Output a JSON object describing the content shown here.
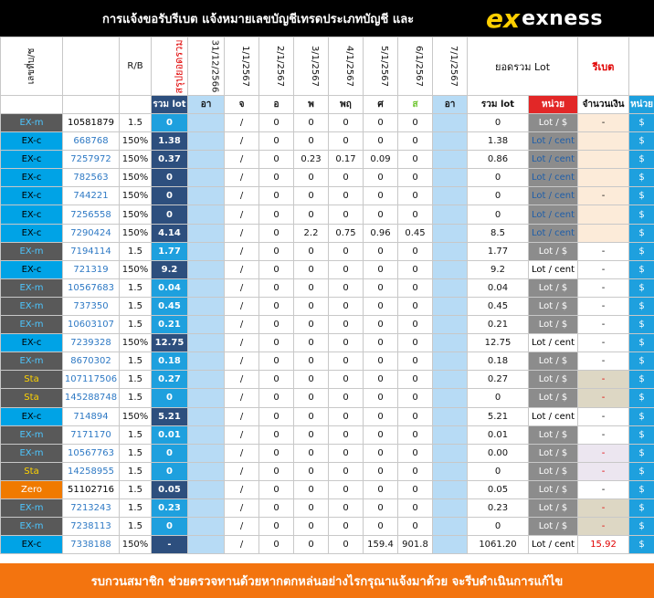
{
  "header": {
    "title": "การแจ้งขอรับรีเบต  แจ้งหมายเลขบัญชีเทรดประเภทบัญชี และ",
    "logo_mark": "ex",
    "logo_word": "exness"
  },
  "columns": {
    "row1": {
      "acc_type": "เลขที่บ/ช",
      "rb": "R/B",
      "lot_rotated": "สรุปยอดรวม",
      "dates": [
        "31/12/2566",
        "1/1/2567",
        "2/1/2567",
        "3/1/2567",
        "4/1/2567",
        "5/1/2567",
        "6/1/2567",
        "7/1/2567"
      ],
      "sum_lot": "ยอดรวม Lot",
      "rebate": "รีเบต"
    },
    "row2": {
      "lot": "รวม lot",
      "days": [
        "อา",
        "จ",
        "อ",
        "พ",
        "พฤ",
        "ศ",
        "ส",
        "อา"
      ],
      "sum_lot": "รวม lot",
      "unit": "หน่วย",
      "amount": "จำนวนเงิน",
      "unit2": "หน่วย"
    }
  },
  "rows": [
    {
      "type": "EX-m",
      "acc": "10581879",
      "rb": "1.5",
      "lot": "0",
      "vals": [
        "",
        "/",
        "0",
        "0",
        "0",
        "0",
        "0",
        ""
      ],
      "sum": "0",
      "unit": "Lot / $",
      "amount": "-",
      "unit2": "$"
    },
    {
      "type": "EX-c",
      "acc": "668768",
      "rb": "150%",
      "lot": "1.38",
      "vals": [
        "",
        "/",
        "0",
        "0",
        "0",
        "0",
        "0",
        ""
      ],
      "sum": "1.38",
      "unit": "Lot / cent",
      "amount": "",
      "unit2": "$"
    },
    {
      "type": "EX-c",
      "acc": "7257972",
      "rb": "150%",
      "lot": "0.37",
      "vals": [
        "",
        "/",
        "0",
        "0.23",
        "0.17",
        "0.09",
        "0",
        ""
      ],
      "sum": "0.86",
      "unit": "Lot / cent",
      "amount": "",
      "unit2": "$"
    },
    {
      "type": "EX-c",
      "acc": "782563",
      "rb": "150%",
      "lot": "0",
      "vals": [
        "",
        "/",
        "0",
        "0",
        "0",
        "0",
        "0",
        ""
      ],
      "sum": "0",
      "unit": "Lot / cent",
      "amount": "",
      "unit2": "$"
    },
    {
      "type": "EX-c",
      "acc": "744221",
      "rb": "150%",
      "lot": "0",
      "vals": [
        "",
        "/",
        "0",
        "0",
        "0",
        "0",
        "0",
        ""
      ],
      "sum": "0",
      "unit": "Lot / cent",
      "amount": "-",
      "unit2": "$"
    },
    {
      "type": "EX-c",
      "acc": "7256558",
      "rb": "150%",
      "lot": "0",
      "vals": [
        "",
        "/",
        "0",
        "0",
        "0",
        "0",
        "0",
        ""
      ],
      "sum": "0",
      "unit": "Lot / cent",
      "amount": "",
      "unit2": "$"
    },
    {
      "type": "EX-c",
      "acc": "7290424",
      "rb": "150%",
      "lot": "4.14",
      "vals": [
        "",
        "/",
        "0",
        "2.2",
        "0.75",
        "0.96",
        "0.45",
        ""
      ],
      "sum": "8.5",
      "unit": "Lot / cent",
      "amount": "",
      "unit2": "$"
    },
    {
      "type": "EX-m",
      "acc": "7194114",
      "rb": "1.5",
      "lot": "1.77",
      "vals": [
        "",
        "/",
        "0",
        "0",
        "0",
        "0",
        "0",
        ""
      ],
      "sum": "1.77",
      "unit": "Lot / $",
      "amount": "-",
      "unit2": "$"
    },
    {
      "type": "EX-c",
      "acc": "721319",
      "rb": "150%",
      "lot": "9.2",
      "vals": [
        "",
        "/",
        "0",
        "0",
        "0",
        "0",
        "0",
        ""
      ],
      "sum": "9.2",
      "unit": "Lot / cent",
      "amount": "-",
      "unit2": "$"
    },
    {
      "type": "EX-m",
      "acc": "10567683",
      "rb": "1.5",
      "lot": "0.04",
      "vals": [
        "",
        "/",
        "0",
        "0",
        "0",
        "0",
        "0",
        ""
      ],
      "sum": "0.04",
      "unit": "Lot / $",
      "amount": "-",
      "unit2": "$"
    },
    {
      "type": "EX-m",
      "acc": "737350",
      "rb": "1.5",
      "lot": "0.45",
      "vals": [
        "",
        "/",
        "0",
        "0",
        "0",
        "0",
        "0",
        ""
      ],
      "sum": "0.45",
      "unit": "Lot / $",
      "amount": "-",
      "unit2": "$"
    },
    {
      "type": "EX-m",
      "acc": "10603107",
      "rb": "1.5",
      "lot": "0.21",
      "vals": [
        "",
        "/",
        "0",
        "0",
        "0",
        "0",
        "0",
        ""
      ],
      "sum": "0.21",
      "unit": "Lot / $",
      "amount": "-",
      "unit2": "$"
    },
    {
      "type": "EX-c",
      "acc": "7239328",
      "rb": "150%",
      "lot": "12.75",
      "vals": [
        "",
        "/",
        "0",
        "0",
        "0",
        "0",
        "0",
        ""
      ],
      "sum": "12.75",
      "unit": "Lot / cent",
      "amount": "-",
      "unit2": "$"
    },
    {
      "type": "EX-m",
      "acc": "8670302",
      "rb": "1.5",
      "lot": "0.18",
      "vals": [
        "",
        "/",
        "0",
        "0",
        "0",
        "0",
        "0",
        ""
      ],
      "sum": "0.18",
      "unit": "Lot / $",
      "amount": "-",
      "unit2": "$"
    },
    {
      "type": "Sta",
      "acc": "107117506",
      "rb": "1.5",
      "lot": "0.27",
      "vals": [
        "",
        "/",
        "0",
        "0",
        "0",
        "0",
        "0",
        ""
      ],
      "sum": "0.27",
      "unit": "Lot / $",
      "amount": "-",
      "unit2": "$"
    },
    {
      "type": "Sta",
      "acc": "145288748",
      "rb": "1.5",
      "lot": "0",
      "vals": [
        "",
        "/",
        "0",
        "0",
        "0",
        "0",
        "0",
        ""
      ],
      "sum": "0",
      "unit": "Lot / $",
      "amount": "-",
      "unit2": "$"
    },
    {
      "type": "EX-c",
      "acc": "714894",
      "rb": "150%",
      "lot": "5.21",
      "vals": [
        "",
        "/",
        "0",
        "0",
        "0",
        "0",
        "0",
        ""
      ],
      "sum": "5.21",
      "unit": "Lot / cent",
      "amount": "-",
      "unit2": "$"
    },
    {
      "type": "EX-m",
      "acc": "7171170",
      "rb": "1.5",
      "lot": "0.01",
      "vals": [
        "",
        "/",
        "0",
        "0",
        "0",
        "0",
        "0",
        ""
      ],
      "sum": "0.01",
      "unit": "Lot / $",
      "amount": "-",
      "unit2": "$"
    },
    {
      "type": "EX-m",
      "acc": "10567763",
      "rb": "1.5",
      "lot": "0",
      "vals": [
        "",
        "/",
        "0",
        "0",
        "0",
        "0",
        "0",
        ""
      ],
      "sum": "0.00",
      "unit": "Lot / $",
      "amount": "-",
      "unit2": "$"
    },
    {
      "type": "Sta",
      "acc": "14258955",
      "rb": "1.5",
      "lot": "0",
      "vals": [
        "",
        "/",
        "0",
        "0",
        "0",
        "0",
        "0",
        ""
      ],
      "sum": "0",
      "unit": "Lot / $",
      "amount": "-",
      "unit2": "$"
    },
    {
      "type": "Zero",
      "acc": "51102716",
      "rb": "1.5",
      "lot": "0.05",
      "vals": [
        "",
        "/",
        "0",
        "0",
        "0",
        "0",
        "0",
        ""
      ],
      "sum": "0.05",
      "unit": "Lot / $",
      "amount": "-",
      "unit2": "$"
    },
    {
      "type": "EX-m",
      "acc": "7213243",
      "rb": "1.5",
      "lot": "0.23",
      "vals": [
        "",
        "/",
        "0",
        "0",
        "0",
        "0",
        "0",
        ""
      ],
      "sum": "0.23",
      "unit": "Lot / $",
      "amount": "-",
      "unit2": "$"
    },
    {
      "type": "EX-m",
      "acc": "7238113",
      "rb": "1.5",
      "lot": "0",
      "vals": [
        "",
        "/",
        "0",
        "0",
        "0",
        "0",
        "0",
        ""
      ],
      "sum": "0",
      "unit": "Lot / $",
      "amount": "-",
      "unit2": "$"
    },
    {
      "type": "EX-c",
      "acc": "7338188",
      "rb": "150%",
      "lot": "-",
      "vals": [
        "",
        "/",
        "0",
        "0",
        "0",
        "159.4",
        "901.8",
        ""
      ],
      "sum": "1061.20",
      "unit": "Lot / cent",
      "amount": "15.92",
      "unit2": "$"
    }
  ],
  "footer": {
    "text": "รบกวนสมาชิก ช่วยตรวจทานด้วยหากตกหล่นอย่างไรกรุณาแจ้งมาด้วย จะรีบดำเนินการแก้ไข"
  },
  "colors": {
    "header_bg": "#000000",
    "navy": "#2d4f7e",
    "sky": "#1ea0de",
    "light_blue": "#b7dbf5",
    "gray": "#595959",
    "orange": "#f3740f",
    "red": "#e00000"
  }
}
